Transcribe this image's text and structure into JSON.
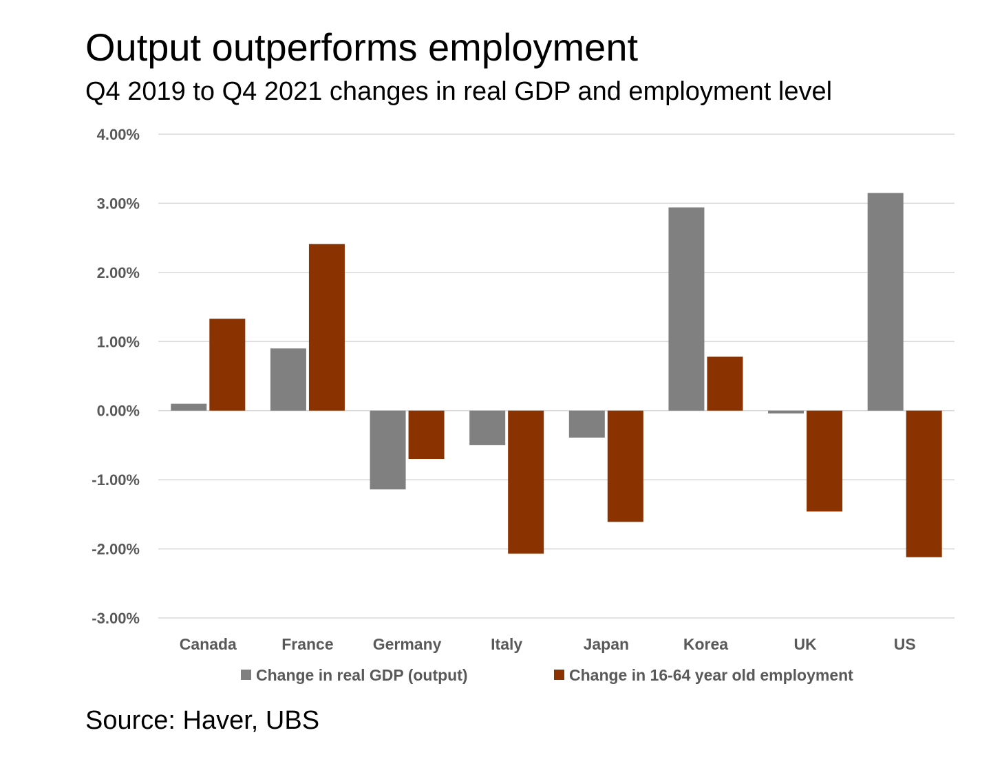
{
  "header": {
    "title": "Output outperforms employment",
    "subtitle": "Q4 2019 to Q4 2021 changes in real GDP and employment level"
  },
  "footer": {
    "source": "Source: Haver, UBS"
  },
  "chart_data": {
    "type": "bar",
    "categories": [
      "Canada",
      "France",
      "Germany",
      "Italy",
      "Japan",
      "Korea",
      "UK",
      "US"
    ],
    "series": [
      {
        "name": "Change in real GDP (output)",
        "color": "#808080",
        "values": [
          0.1,
          0.9,
          -1.14,
          -0.5,
          -0.39,
          2.94,
          -0.04,
          3.15
        ]
      },
      {
        "name": "Change in 16-64 year old employment",
        "color": "#8B3300",
        "values": [
          1.33,
          2.41,
          -0.7,
          -2.07,
          -1.61,
          0.78,
          -1.46,
          -2.12
        ]
      }
    ],
    "ylim": [
      -3,
      4
    ],
    "yticks": [
      "4.00%",
      "3.00%",
      "2.00%",
      "1.00%",
      "0.00%",
      "-1.00%",
      "-2.00%",
      "-3.00%"
    ],
    "ytick_values": [
      4,
      3,
      2,
      1,
      0,
      -1,
      -2,
      -3
    ],
    "grid": true,
    "legend_position": "bottom"
  }
}
